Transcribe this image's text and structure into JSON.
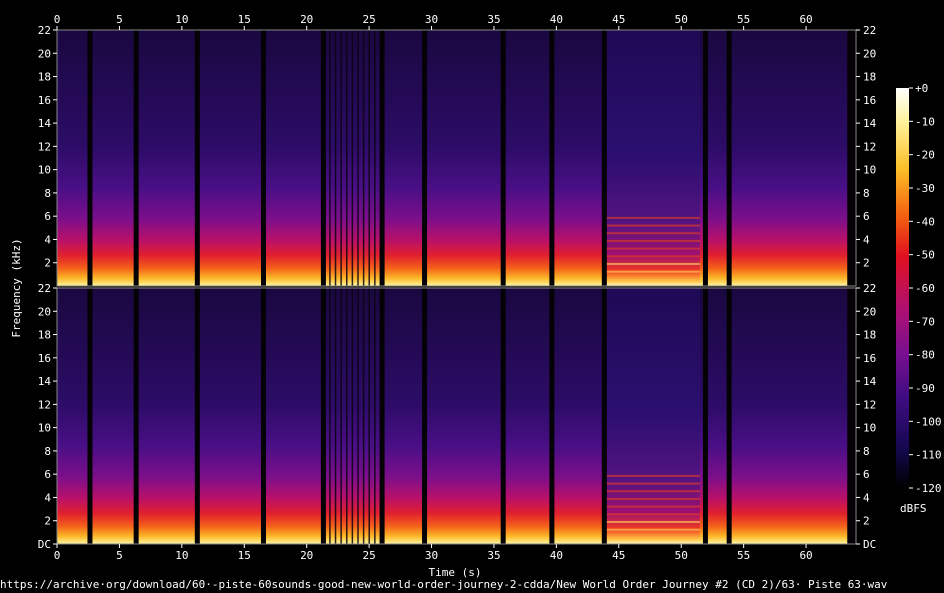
{
  "chart_data": {
    "type": "heatmap",
    "title": "",
    "xlabel": "Time (s)",
    "ylabel": "Frequency (kHz)",
    "xlim": [
      0,
      64
    ],
    "ylim": [
      0,
      22
    ],
    "x_ticks": [
      "0",
      "5",
      "10",
      "15",
      "20",
      "25",
      "30",
      "35",
      "40",
      "45",
      "50",
      "55",
      "60"
    ],
    "y_ticks": [
      "DC",
      "2",
      "4",
      "6",
      "8",
      "10",
      "12",
      "14",
      "16",
      "18",
      "20",
      "22"
    ],
    "channels": 2,
    "silence_gaps_s": [
      2.6,
      6.3,
      11.2,
      16.5,
      21.3,
      26.0,
      29.4,
      35.7,
      39.6,
      43.8,
      51.9,
      53.8
    ],
    "sustained_tone_region_s": [
      44.0,
      51.5
    ],
    "colorbar": {
      "label": "dBFS",
      "ticks": [
        "+0",
        "-10",
        "-20",
        "-30",
        "-40",
        "-50",
        "-60",
        "-70",
        "-80",
        "-90",
        "-100",
        "-110",
        "-120"
      ],
      "range": [
        -120,
        0
      ]
    }
  },
  "footer": {
    "source": "https://archive·org/download/60·-piste-60sounds-good-new-world-order-journey-2-cdda/New World Order Journey #2 (CD 2)/63· Piste 63·wav"
  }
}
